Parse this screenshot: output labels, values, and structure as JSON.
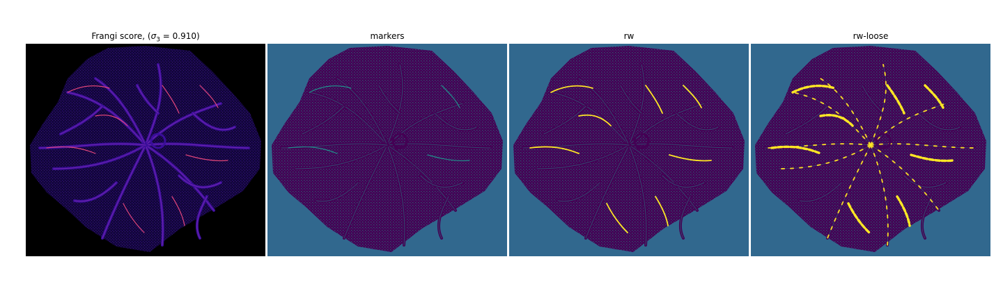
{
  "figure": {
    "panels": [
      {
        "title_prefix": "Frangi score, (",
        "title_sigma": "σ",
        "title_sub": "3",
        "title_value": " = 0.910)",
        "colormap": "plasma",
        "background": "#000000",
        "vessel": "#3a0e9a",
        "accent": "#e0457a",
        "highlight": "#fde724"
      },
      {
        "title": "markers",
        "colormap": "viridis",
        "background": "#31688e",
        "tissue": "#440154",
        "accent": "#21918c"
      },
      {
        "title": "rw",
        "colormap": "viridis",
        "background": "#31688e",
        "tissue": "#440154",
        "accent": "#21918c",
        "highlight": "#fde725"
      },
      {
        "title": "rw-loose",
        "colormap": "viridis",
        "background": "#31688e",
        "tissue": "#440154",
        "accent": "#21918c",
        "highlight": "#fde725"
      }
    ]
  }
}
